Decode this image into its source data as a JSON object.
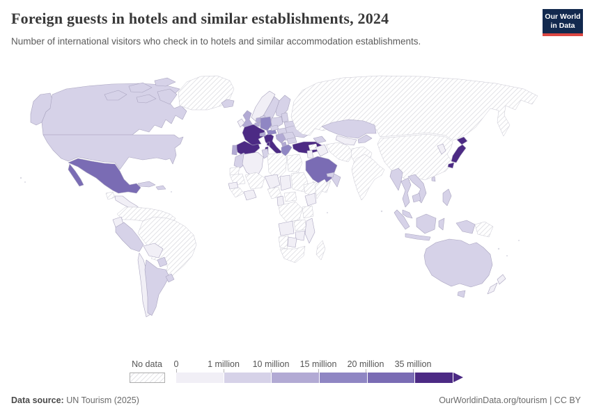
{
  "header": {
    "title": "Foreign guests in hotels and similar establishments, 2024",
    "subtitle": "Number of international visitors who check in to hotels and similar accommodation establishments.",
    "logo": {
      "line1": "Our World",
      "line2": "in Data",
      "navy": "#12294e",
      "red": "#dc4742"
    }
  },
  "footer": {
    "data_source_label": "Data source:",
    "data_source_value": " UN Tourism (2025)",
    "url": "OurWorldinData.org/tourism",
    "separator": " | ",
    "license": "CC BY"
  },
  "chart_data": {
    "type": "choropleth-map",
    "title": "Foreign guests in hotels and similar establishments, 2024",
    "unit": "foreign guests checking in to hotels and similar establishments",
    "legend": {
      "no_data_label": "No data",
      "tick_labels": [
        "0",
        "1 million",
        "10 million",
        "15 million",
        "20 million",
        "35 million"
      ],
      "bands": [
        {
          "range": "0-1 million",
          "color": "#f1eff6"
        },
        {
          "range": "1-10 million",
          "color": "#d6d2e8"
        },
        {
          "range": "10-15 million",
          "color": "#b2aad4"
        },
        {
          "range": "15-20 million",
          "color": "#8f86c3"
        },
        {
          "range": "20-35 million",
          "color": "#7a6cb4"
        },
        {
          "range": "35+ million",
          "color": "#4c2a84"
        }
      ],
      "no_data_style": "diagonal-hatch"
    },
    "regions": {
      "canada": 1,
      "canada-arctic": 1,
      "alaska": 1,
      "greenland": "no-data",
      "united-states": 1,
      "mexico": 4,
      "guatemala": "no-data",
      "central-america": 0,
      "cuba": 1,
      "hispaniola": 1,
      "colombia-venezuela": "no-data",
      "ecuador": 0,
      "peru": 1,
      "brazil": "no-data",
      "bolivia": 0,
      "paraguay": 1,
      "chile": 0,
      "argentina": 1,
      "uruguay": 1,
      "iceland": 1,
      "norway": 0,
      "sweden": 1,
      "finland": 1,
      "denmark": 1,
      "united-kingdom": 2,
      "ireland": 0,
      "baltics": 1,
      "belarus": 1,
      "ukraine": 1,
      "poland": 1,
      "germany": 3,
      "netherlands": 2,
      "belgium": 2,
      "france": 5,
      "spain": 5,
      "portugal": 2,
      "italy": 5,
      "switzerland": 2,
      "austria": 3,
      "czechia": 1,
      "hungary": 1,
      "romania": 1,
      "croatia-balkans": 2,
      "albania-macedonia": 2,
      "bulgaria": 1,
      "greece": 3,
      "turkey": 5,
      "caucasus": 1,
      "russia": "no-data",
      "kazakhstan": 1,
      "uzbekistan-turkmenistan": 0,
      "kyrgyzstan-tajikistan": 1,
      "syria": "no-data",
      "iraq": 0,
      "israel-jordan": 0,
      "iran": "no-data",
      "afghanistan-pakistan": "no-data",
      "saudi-arabia": 4,
      "yemen": "no-data",
      "oman": 1,
      "uae": 1,
      "india": "no-data",
      "china-mongolia": "no-data",
      "korea": 0,
      "japan": 5,
      "taiwan": 1,
      "myanmar": 1,
      "thailand": 1,
      "vietnam-laos": 1,
      "cambodia": 1,
      "malaysia": 1,
      "indonesia": 1,
      "west-papua": 1,
      "papua-new-guinea": "no-data",
      "philippines": 1,
      "australia": 1,
      "tasmania": 1,
      "new-zealand": 0,
      "morocco": 1,
      "western-sahara": "no-data",
      "mauritania": "no-data",
      "algeria": 0,
      "tunisia": 1,
      "libya": "no-data",
      "egypt": "no-data",
      "mali": "no-data",
      "niger": 0,
      "chad": 0,
      "sudan": "no-data",
      "senegal": 0,
      "guinea": "no-data",
      "ghana-ivory-coast": 0,
      "nigeria": "no-data",
      "cameroon": 0,
      "ethiopia": "no-data",
      "somalia": "no-data",
      "kenya": 0,
      "central-african-republic": "no-data",
      "dr-congo": "no-data",
      "tanzania": "no-data",
      "angola": 0,
      "zambia": "no-data",
      "mozambique": 0,
      "zimbabwe": 0,
      "namibia": "no-data",
      "botswana": 0,
      "south-africa": "no-data",
      "madagascar": "no-data"
    }
  }
}
